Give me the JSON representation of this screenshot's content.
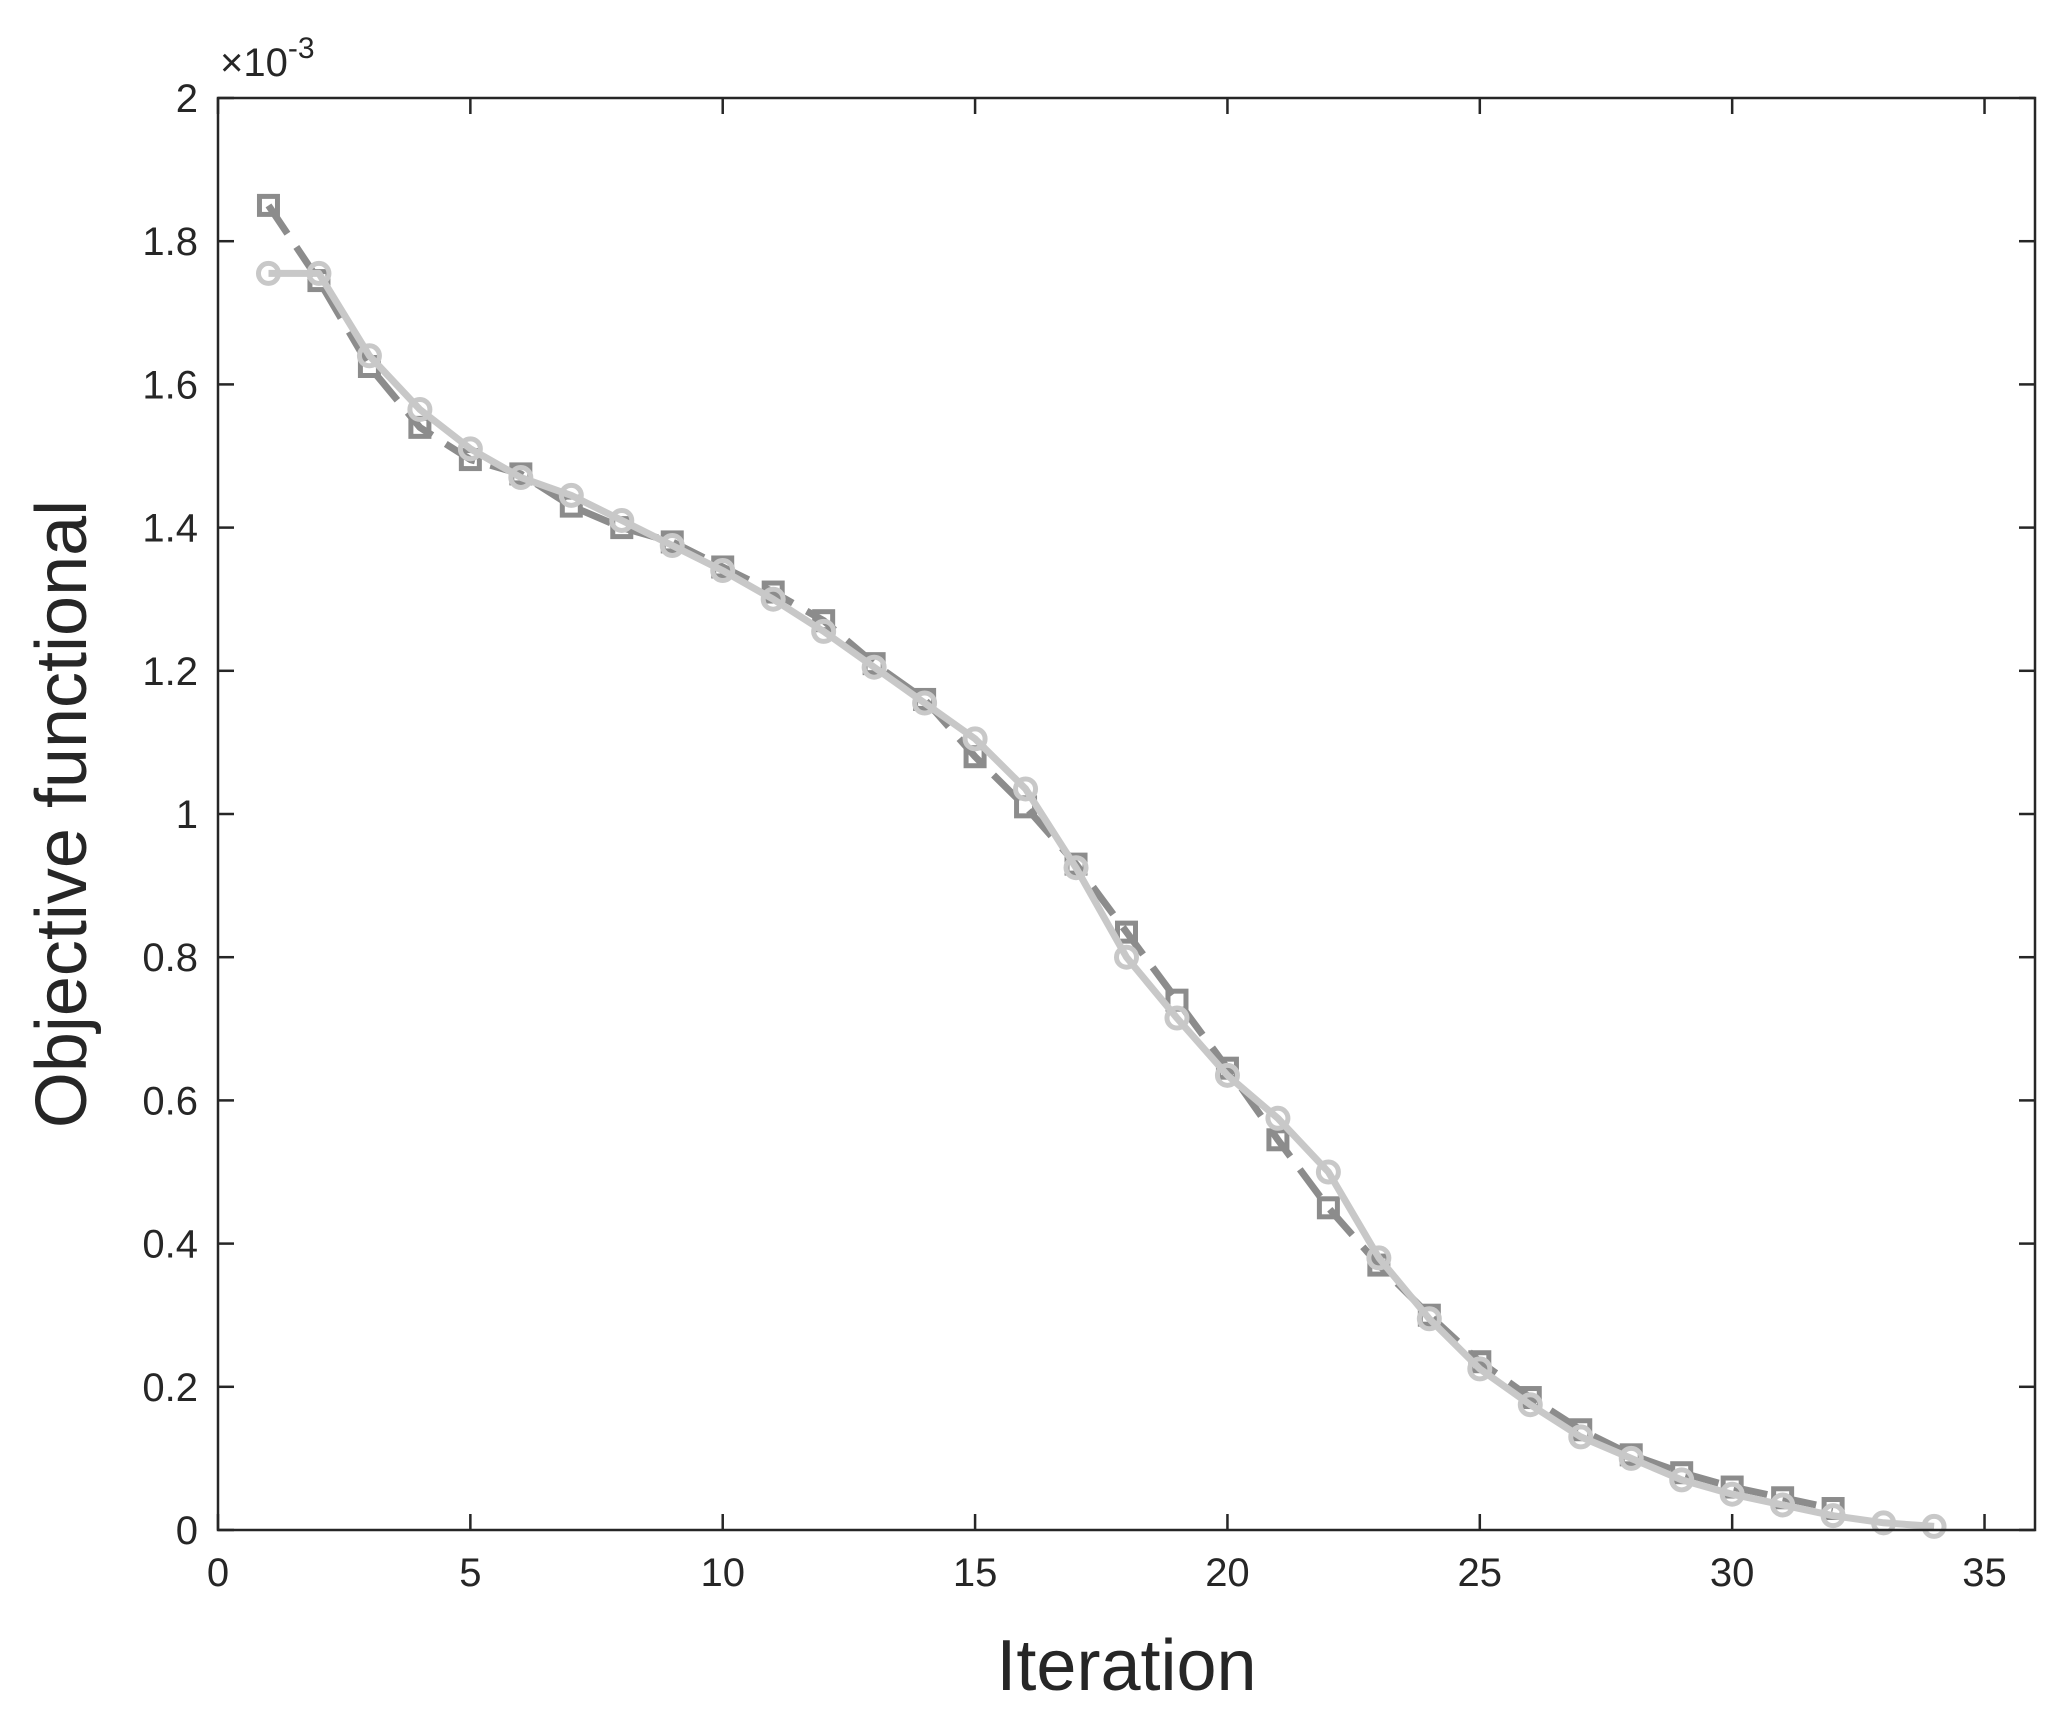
{
  "chart_data": {
    "type": "line",
    "xlabel": "Iteration",
    "ylabel": "Objective functional",
    "y_exponent_label": "×10",
    "y_exponent_power": "-3",
    "xlim": [
      0,
      36
    ],
    "ylim": [
      0,
      2.0
    ],
    "x_ticks": [
      0,
      5,
      10,
      15,
      20,
      25,
      30,
      35
    ],
    "x_tick_labels": [
      "0",
      "5",
      "10",
      "15",
      "20",
      "25",
      "30",
      "35"
    ],
    "y_ticks": [
      0,
      0.2,
      0.4,
      0.6,
      0.8,
      1.0,
      1.2,
      1.4,
      1.6,
      1.8,
      2.0
    ],
    "y_tick_labels": [
      "0",
      "0.2",
      "0.4",
      "0.6",
      "0.8",
      "1",
      "1.2",
      "1.4",
      "1.6",
      "1.8",
      "2"
    ],
    "grid": false,
    "box": true,
    "series": [
      {
        "style": "dashed",
        "marker": "square",
        "color": "#8c8c8c",
        "x": [
          1,
          2,
          3,
          4,
          5,
          6,
          7,
          8,
          9,
          10,
          11,
          12,
          13,
          14,
          15,
          16,
          17,
          18,
          19,
          20,
          21,
          22,
          23,
          24,
          25,
          26,
          27,
          28,
          29,
          30,
          31,
          32
        ],
        "values": [
          1.85,
          1.745,
          1.625,
          1.54,
          1.495,
          1.475,
          1.43,
          1.4,
          1.38,
          1.345,
          1.31,
          1.27,
          1.21,
          1.16,
          1.08,
          1.01,
          0.93,
          0.835,
          0.74,
          0.645,
          0.545,
          0.45,
          0.37,
          0.3,
          0.235,
          0.185,
          0.14,
          0.105,
          0.08,
          0.06,
          0.045,
          0.03
        ]
      },
      {
        "style": "solid",
        "marker": "circle",
        "color": "#c8c8c8",
        "x": [
          1,
          2,
          3,
          4,
          5,
          6,
          7,
          8,
          9,
          10,
          11,
          12,
          13,
          14,
          15,
          16,
          17,
          18,
          19,
          20,
          21,
          22,
          23,
          24,
          25,
          26,
          27,
          28,
          29,
          30,
          31,
          32,
          33,
          34
        ],
        "values": [
          1.755,
          1.755,
          1.64,
          1.565,
          1.51,
          1.47,
          1.445,
          1.41,
          1.375,
          1.34,
          1.3,
          1.255,
          1.205,
          1.155,
          1.105,
          1.035,
          0.925,
          0.8,
          0.715,
          0.635,
          0.575,
          0.5,
          0.38,
          0.295,
          0.225,
          0.175,
          0.13,
          0.1,
          0.07,
          0.05,
          0.035,
          0.02,
          0.01,
          0.005
        ]
      }
    ]
  }
}
